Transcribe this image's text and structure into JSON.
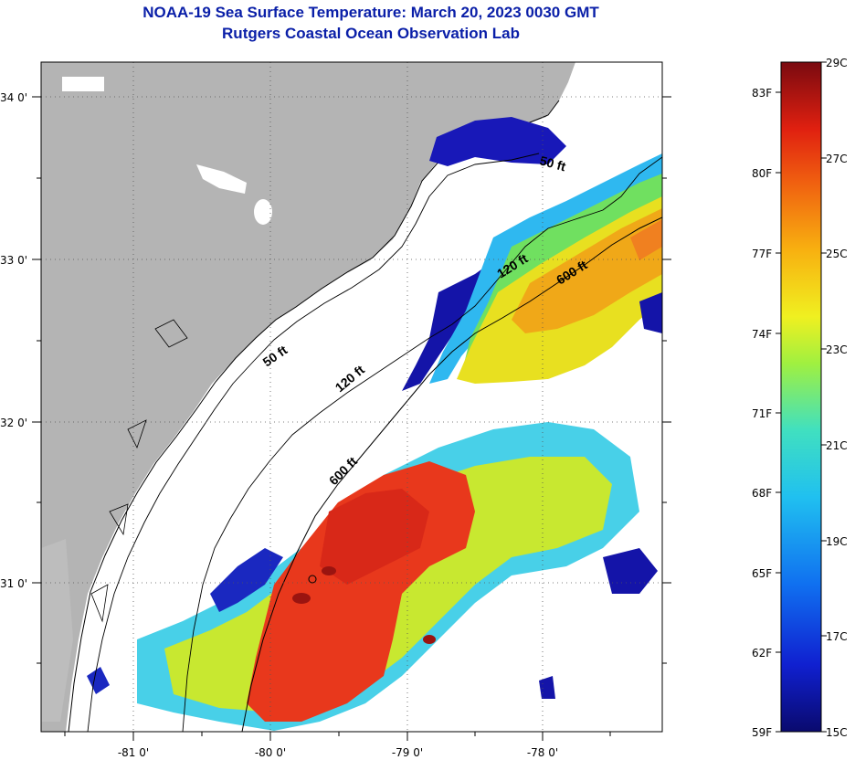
{
  "header": {
    "title": "NOAA-19 Sea Surface Temperature:  March 20, 2023 0030 GMT",
    "subtitle": "Rutgers Coastal Ocean Observation Lab"
  },
  "map": {
    "lon_labels": [
      "-81 0'",
      "-80 0'",
      "-79 0'",
      "-78 0'"
    ],
    "lat_labels": [
      "34 0'",
      "33 0'",
      "32 0'",
      "31 0'"
    ],
    "contours": [
      "50 ft",
      "120 ft",
      "600 ft",
      "50 ft",
      "120 ft",
      "600 ft"
    ],
    "colors": {
      "land": "#b4b4b4",
      "cloud": "#ffffff",
      "cold": "#1010b0",
      "cool": "#3fc8f0",
      "mild": "#e8ea20",
      "warm": "#f0a010",
      "hot": "#e02a10"
    }
  },
  "colorbar": {
    "fahrenheit_labels": [
      "83F",
      "80F",
      "77F",
      "74F",
      "71F",
      "68F",
      "65F",
      "62F",
      "59F"
    ],
    "celsius_labels": [
      "29C",
      "27C",
      "25C",
      "23C",
      "21C",
      "19C",
      "17C",
      "15C"
    ]
  }
}
